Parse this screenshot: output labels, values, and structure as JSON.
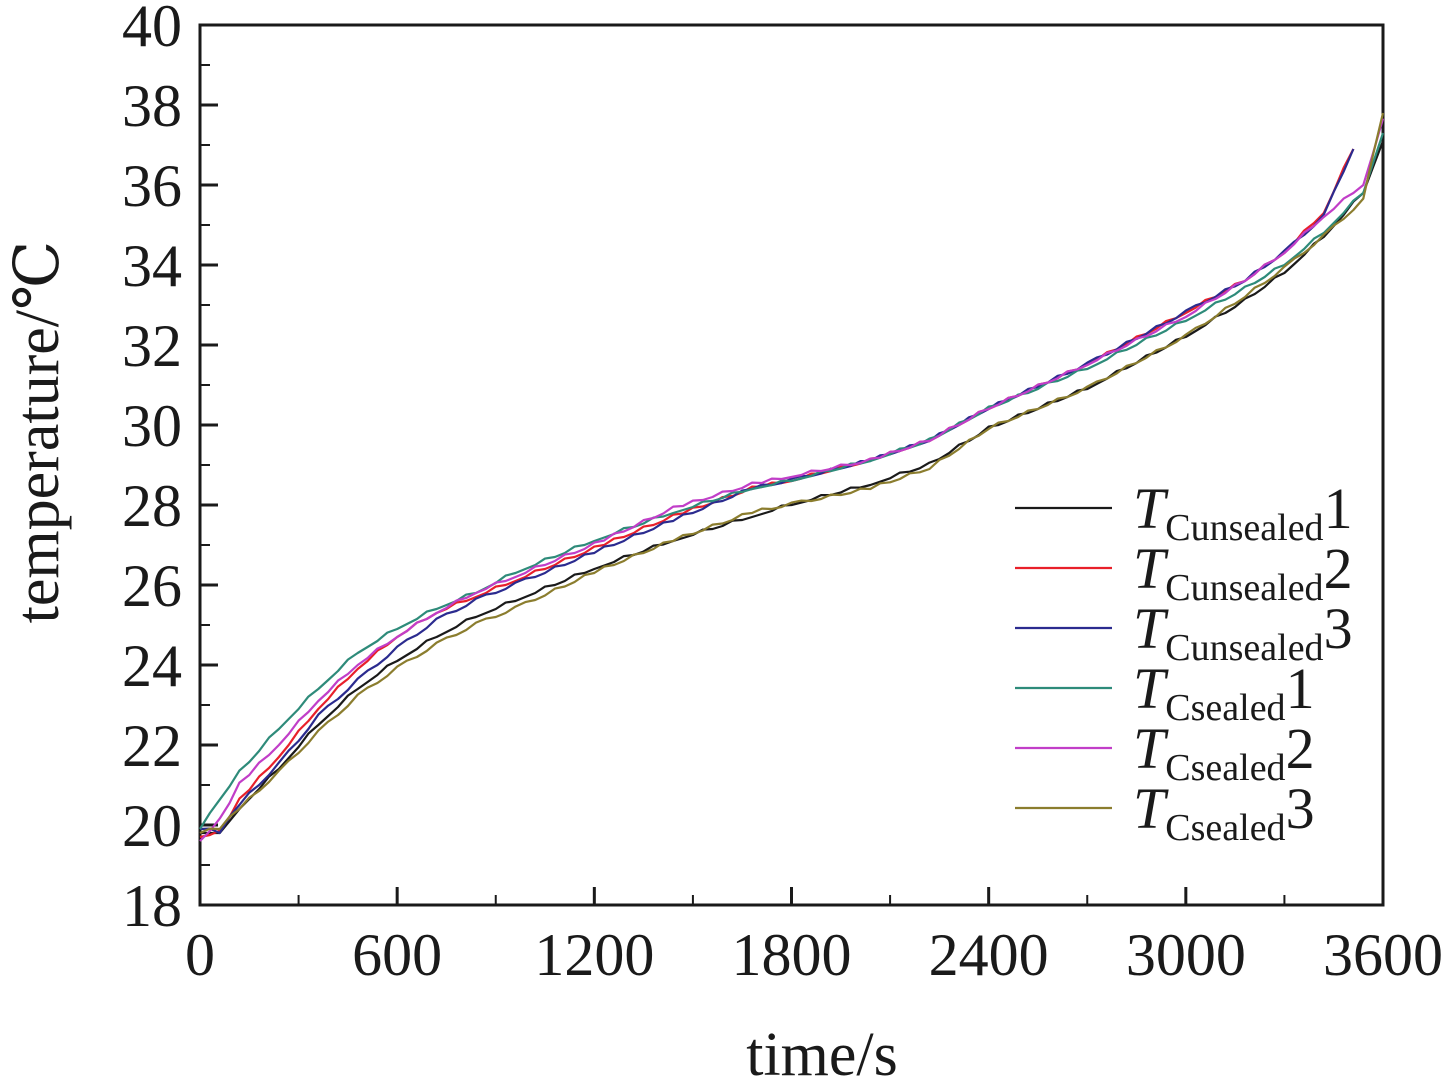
{
  "chart_data": {
    "type": "line",
    "xlabel": "time/s",
    "ylabel": "temperature/℃",
    "xlim": [
      0,
      3600
    ],
    "ylim": [
      18,
      40
    ],
    "x_ticks": [
      0,
      600,
      1200,
      1800,
      2400,
      3000,
      3600
    ],
    "y_ticks": [
      18,
      20,
      22,
      24,
      26,
      28,
      30,
      32,
      34,
      36,
      38,
      40
    ],
    "x_tick_labels": [
      "0",
      "600",
      "1200",
      "1800",
      "2400",
      "3000",
      "3600"
    ],
    "y_tick_labels": [
      "18",
      "20",
      "22",
      "24",
      "26",
      "28",
      "30",
      "32",
      "34",
      "36",
      "38",
      "40"
    ],
    "grid": false,
    "legend_position": "right",
    "series": [
      {
        "name": "TCunsealed1",
        "legend": {
          "T": "T",
          "sub": "Cunsealed",
          "num": "1"
        },
        "color": "#1a1a1a",
        "points": [
          [
            0,
            19.8
          ],
          [
            60,
            19.8
          ],
          [
            120,
            20.4
          ],
          [
            240,
            21.4
          ],
          [
            360,
            22.5
          ],
          [
            480,
            23.4
          ],
          [
            600,
            24.1
          ],
          [
            720,
            24.7
          ],
          [
            840,
            25.2
          ],
          [
            960,
            25.6
          ],
          [
            1200,
            26.4
          ],
          [
            1440,
            27.1
          ],
          [
            1680,
            27.7
          ],
          [
            1800,
            28.0
          ],
          [
            2040,
            28.5
          ],
          [
            2220,
            29.0
          ],
          [
            2400,
            29.9
          ],
          [
            2700,
            30.9
          ],
          [
            3000,
            32.2
          ],
          [
            3180,
            33.1
          ],
          [
            3300,
            33.8
          ],
          [
            3420,
            34.7
          ],
          [
            3540,
            35.8
          ],
          [
            3600,
            37.1
          ]
        ]
      },
      {
        "name": "TCunsealed2",
        "legend": {
          "T": "T",
          "sub": "Cunsealed",
          "num": "2"
        },
        "color": "#e8202a",
        "points": [
          [
            0,
            19.7
          ],
          [
            60,
            19.8
          ],
          [
            120,
            20.6
          ],
          [
            240,
            21.7
          ],
          [
            360,
            22.9
          ],
          [
            480,
            23.9
          ],
          [
            600,
            24.7
          ],
          [
            720,
            25.3
          ],
          [
            840,
            25.7
          ],
          [
            960,
            26.1
          ],
          [
            1200,
            26.9
          ],
          [
            1440,
            27.7
          ],
          [
            1680,
            28.4
          ],
          [
            1800,
            28.6
          ],
          [
            2040,
            29.1
          ],
          [
            2220,
            29.6
          ],
          [
            2400,
            30.4
          ],
          [
            2700,
            31.5
          ],
          [
            3000,
            32.8
          ],
          [
            3180,
            33.6
          ],
          [
            3300,
            34.3
          ],
          [
            3420,
            35.3
          ],
          [
            3510,
            36.9
          ]
        ]
      },
      {
        "name": "TCunsealed3",
        "legend": {
          "T": "T",
          "sub": "Cunsealed",
          "num": "3"
        },
        "color": "#2b2b8f",
        "points": [
          [
            0,
            19.9
          ],
          [
            60,
            19.8
          ],
          [
            120,
            20.5
          ],
          [
            240,
            21.5
          ],
          [
            360,
            22.7
          ],
          [
            480,
            23.6
          ],
          [
            600,
            24.4
          ],
          [
            720,
            25.1
          ],
          [
            840,
            25.6
          ],
          [
            960,
            26.0
          ],
          [
            1200,
            26.8
          ],
          [
            1440,
            27.6
          ],
          [
            1680,
            28.4
          ],
          [
            1800,
            28.6
          ],
          [
            2040,
            29.1
          ],
          [
            2220,
            29.6
          ],
          [
            2400,
            30.4
          ],
          [
            2700,
            31.5
          ],
          [
            3000,
            32.8
          ],
          [
            3180,
            33.6
          ],
          [
            3300,
            34.3
          ],
          [
            3420,
            35.2
          ],
          [
            3510,
            36.9
          ]
        ]
      },
      {
        "name": "TCsealed1",
        "legend": {
          "T": "T",
          "sub": "Csealed",
          "num": "1"
        },
        "color": "#2e8b7a",
        "points": [
          [
            0,
            19.9
          ],
          [
            30,
            20.3
          ],
          [
            120,
            21.3
          ],
          [
            240,
            22.4
          ],
          [
            360,
            23.4
          ],
          [
            480,
            24.3
          ],
          [
            600,
            24.9
          ],
          [
            720,
            25.4
          ],
          [
            840,
            25.8
          ],
          [
            960,
            26.3
          ],
          [
            1200,
            27.1
          ],
          [
            1440,
            27.8
          ],
          [
            1680,
            28.4
          ],
          [
            1800,
            28.6
          ],
          [
            2040,
            29.1
          ],
          [
            2220,
            29.6
          ],
          [
            2400,
            30.4
          ],
          [
            2700,
            31.4
          ],
          [
            3000,
            32.6
          ],
          [
            3180,
            33.4
          ],
          [
            3300,
            34.0
          ],
          [
            3420,
            34.8
          ],
          [
            3540,
            35.8
          ],
          [
            3600,
            37.3
          ]
        ]
      },
      {
        "name": "TCsealed2",
        "legend": {
          "T": "T",
          "sub": "Csealed",
          "num": "2"
        },
        "color": "#c13ec8",
        "points": [
          [
            0,
            19.6
          ],
          [
            60,
            20.1
          ],
          [
            120,
            21.0
          ],
          [
            240,
            22.0
          ],
          [
            360,
            23.1
          ],
          [
            480,
            24.0
          ],
          [
            600,
            24.7
          ],
          [
            720,
            25.3
          ],
          [
            840,
            25.8
          ],
          [
            960,
            26.2
          ],
          [
            1200,
            27.0
          ],
          [
            1440,
            27.9
          ],
          [
            1680,
            28.5
          ],
          [
            1800,
            28.7
          ],
          [
            2040,
            29.1
          ],
          [
            2220,
            29.6
          ],
          [
            2400,
            30.4
          ],
          [
            2700,
            31.5
          ],
          [
            3000,
            32.7
          ],
          [
            3180,
            33.6
          ],
          [
            3300,
            34.3
          ],
          [
            3420,
            35.2
          ],
          [
            3540,
            36.0
          ],
          [
            3600,
            37.6
          ]
        ]
      },
      {
        "name": "TCsealed3",
        "legend": {
          "T": "T",
          "sub": "Csealed",
          "num": "3"
        },
        "color": "#8b7d2e",
        "points": [
          [
            0,
            19.8
          ],
          [
            60,
            19.9
          ],
          [
            120,
            20.4
          ],
          [
            240,
            21.3
          ],
          [
            360,
            22.3
          ],
          [
            480,
            23.2
          ],
          [
            600,
            23.9
          ],
          [
            720,
            24.5
          ],
          [
            840,
            25.0
          ],
          [
            960,
            25.4
          ],
          [
            1200,
            26.3
          ],
          [
            1440,
            27.1
          ],
          [
            1680,
            27.8
          ],
          [
            1800,
            28.0
          ],
          [
            2040,
            28.4
          ],
          [
            2220,
            28.9
          ],
          [
            2400,
            29.9
          ],
          [
            2700,
            30.9
          ],
          [
            3000,
            32.2
          ],
          [
            3180,
            33.2
          ],
          [
            3300,
            33.9
          ],
          [
            3420,
            34.7
          ],
          [
            3540,
            35.6
          ],
          [
            3600,
            37.8
          ]
        ]
      }
    ]
  }
}
